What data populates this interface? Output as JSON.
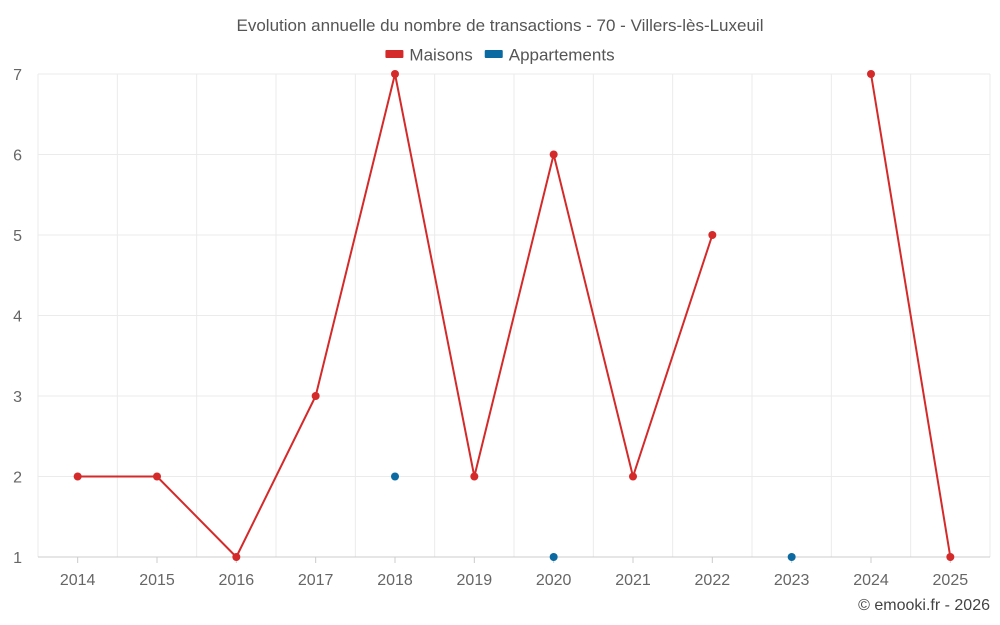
{
  "chart_data": {
    "type": "line",
    "title": "Evolution annuelle du nombre de transactions - 70 - Villers-lès-Luxeuil",
    "categories": [
      "2014",
      "2015",
      "2016",
      "2017",
      "2018",
      "2019",
      "2020",
      "2021",
      "2022",
      "2023",
      "2024",
      "2025"
    ],
    "ylim": [
      1,
      7
    ],
    "yticks": [
      1,
      2,
      3,
      4,
      5,
      6,
      7
    ],
    "grid": true,
    "legend_position": "top-center",
    "series": [
      {
        "name": "Maisons",
        "color": "#d42a2a",
        "values": [
          2,
          2,
          1,
          3,
          7,
          2,
          6,
          2,
          5,
          null,
          7,
          1
        ]
      },
      {
        "name": "Appartements",
        "color": "#0a6aa1",
        "values": [
          null,
          null,
          null,
          null,
          2,
          null,
          1,
          null,
          null,
          1,
          null,
          null
        ]
      }
    ],
    "credit": "© emooki.fr - 2026"
  }
}
